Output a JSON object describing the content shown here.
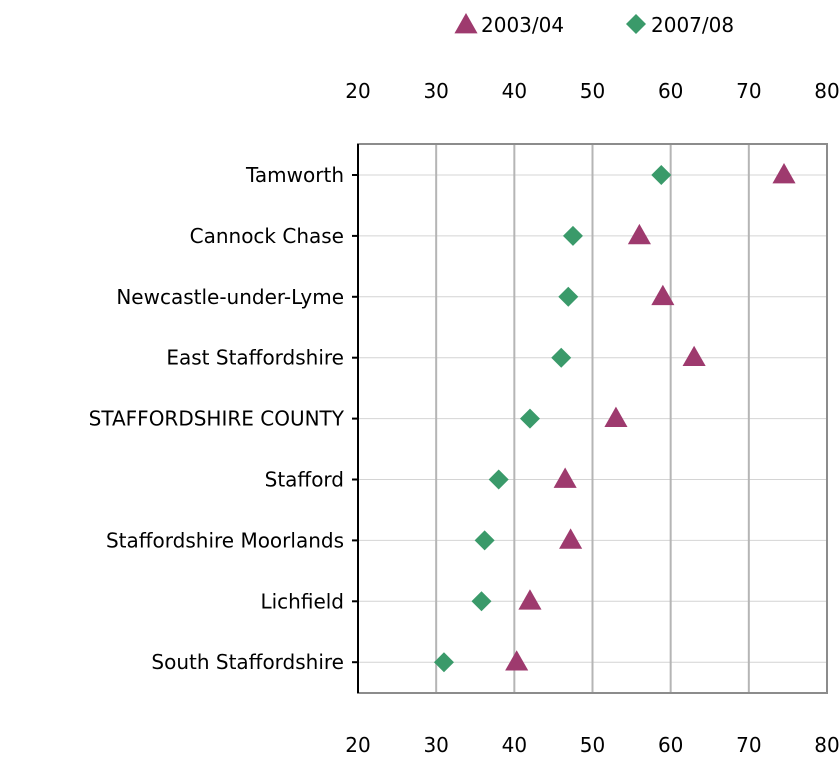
{
  "chart_data": {
    "type": "scatter",
    "orientation": "horizontal-dot-plot",
    "title": "",
    "xlabel": "",
    "ylabel": "",
    "xlim": [
      20,
      80
    ],
    "x_ticks": [
      20,
      30,
      40,
      50,
      60,
      70,
      80
    ],
    "x_axis_labels_position": "top-and-bottom",
    "grid": {
      "vertical": true,
      "horizontal": true
    },
    "legend_position": "top-center",
    "categories": [
      "Tamworth",
      "Cannock Chase",
      "Newcastle-under-Lyme",
      "East Staffordshire",
      "STAFFORDSHIRE COUNTY",
      "Stafford",
      "Staffordshire Moorlands",
      "Lichfield",
      "South Staffordshire"
    ],
    "series": [
      {
        "name": "2003/04",
        "marker": "triangle",
        "color": "#9e3a6e",
        "values": [
          74.5,
          56,
          59,
          63,
          53,
          46.5,
          47.2,
          42,
          40.3
        ]
      },
      {
        "name": "2007/08",
        "marker": "diamond",
        "color": "#3a9a6a",
        "values": [
          58.8,
          47.5,
          46.9,
          46,
          42,
          38,
          36.2,
          35.8,
          31
        ]
      }
    ]
  }
}
